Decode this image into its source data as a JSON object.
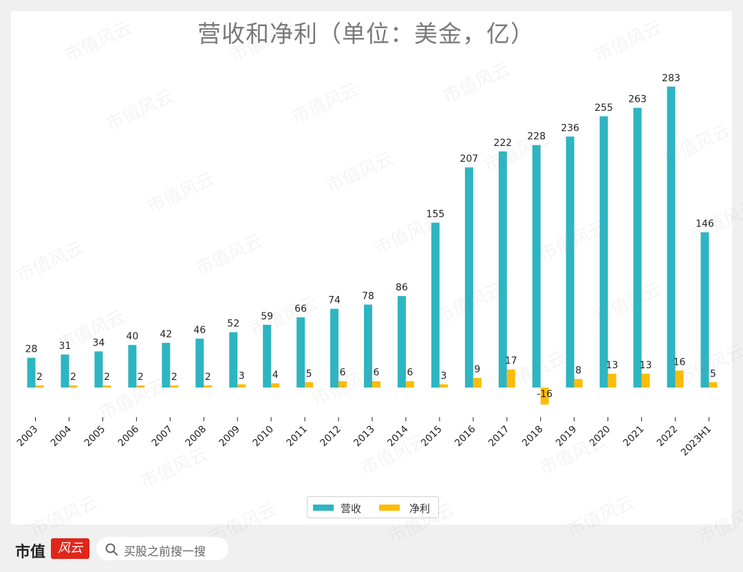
{
  "chart_data": {
    "type": "bar",
    "title": "营收和净利（单位：美金，亿）",
    "categories": [
      "2003",
      "2004",
      "2005",
      "2006",
      "2007",
      "2008",
      "2009",
      "2010",
      "2011",
      "2012",
      "2013",
      "2014",
      "2015",
      "2016",
      "2017",
      "2018",
      "2019",
      "2020",
      "2021",
      "2022",
      "2023H1"
    ],
    "series": [
      {
        "name": "营收",
        "color": "#2eb5c2",
        "values": [
          28,
          31,
          34,
          40,
          42,
          46,
          52,
          59,
          66,
          74,
          78,
          86,
          155,
          207,
          222,
          228,
          236,
          255,
          263,
          283,
          146
        ]
      },
      {
        "name": "净利",
        "color": "#fbbd08",
        "values": [
          2,
          2,
          2,
          2,
          2,
          2,
          3,
          4,
          5,
          6,
          6,
          6,
          3,
          9,
          17,
          -16,
          8,
          13,
          13,
          16,
          5
        ]
      }
    ],
    "ylim": [
      -29,
      300
    ],
    "xlabel": "",
    "ylabel": "",
    "legend": "bottom-center",
    "grid": false
  },
  "watermark": "市值风云",
  "footer": {
    "brand": "市值",
    "brand_mark": "风云",
    "search_placeholder": "买股之前搜一搜"
  }
}
